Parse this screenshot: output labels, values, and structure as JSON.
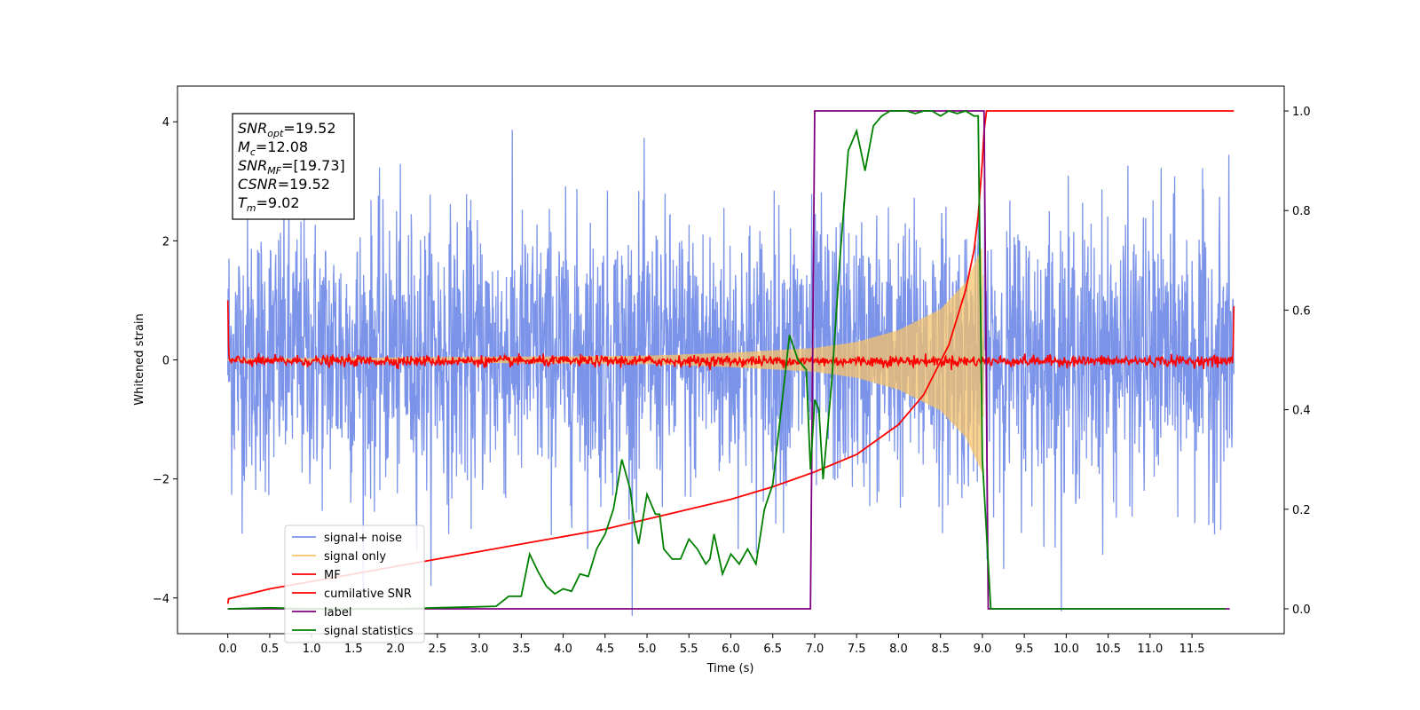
{
  "chart_data": {
    "type": "line",
    "title": "",
    "xlabel": "Time (s)",
    "ylabel": "Whitened strain",
    "xlim": [
      -0.6,
      12.6
    ],
    "ylim": [
      -4.6,
      4.6
    ],
    "y2lim": [
      -0.05,
      1.05
    ],
    "x_tick_labels": [
      "0.0",
      "0.5",
      "1.0",
      "1.5",
      "2.0",
      "2.5",
      "3.0",
      "3.5",
      "4.0",
      "4.5",
      "5.0",
      "5.5",
      "6.0",
      "6.5",
      "7.0",
      "7.5",
      "8.0",
      "8.5",
      "9.0",
      "9.5",
      "10.0",
      "10.5",
      "11.0",
      "11.5"
    ],
    "y_tick_labels": [
      "4",
      "2",
      "0",
      "−2",
      "−4"
    ],
    "y2_tick_labels": [
      "1.0",
      "0.8",
      "0.6",
      "0.4",
      "0.2",
      "0.0"
    ],
    "legend_position": "lower-left",
    "info_box": [
      {
        "sym": "SNR",
        "sub": "opt",
        "val": "=19.52"
      },
      {
        "sym": "M",
        "sub": "c",
        "val": "=12.08"
      },
      {
        "sym": "SNR",
        "sub": "MF",
        "val": "=[19.73]"
      },
      {
        "sym": "CSNR",
        "sub": "",
        "val": "=19.52"
      },
      {
        "sym": "T",
        "sub": "m",
        "val": "=9.02"
      }
    ],
    "series": [
      {
        "name": "signal+ noise",
        "color": "#7b93e8",
        "axis": "left",
        "kind": "noise",
        "x_range": [
          0,
          12
        ],
        "std": 1.15
      },
      {
        "name": "signal only",
        "color": "#f5c36b",
        "axis": "left",
        "kind": "chirp",
        "x_range": [
          0,
          9.02
        ],
        "envelope_t": [
          0,
          5,
          6,
          7,
          7.5,
          8,
          8.5,
          8.8,
          9.0,
          9.02
        ],
        "envelope_a": [
          0.02,
          0.07,
          0.12,
          0.2,
          0.3,
          0.5,
          0.85,
          1.3,
          1.9,
          0
        ]
      },
      {
        "name": "MF",
        "color": "#ff0000",
        "axis": "left",
        "kind": "mf",
        "x_range": [
          0,
          12
        ],
        "start": 1.0,
        "end": 0.9
      },
      {
        "name": "cumilative SNR",
        "color": "#ff0000",
        "axis": "right",
        "x": [
          0.0,
          0.01,
          0.5,
          1.0,
          1.5,
          2.0,
          2.5,
          3.0,
          3.5,
          4.0,
          4.5,
          5.0,
          5.5,
          6.0,
          6.5,
          7.0,
          7.5,
          8.0,
          8.3,
          8.6,
          8.8,
          8.9,
          8.95,
          9.0,
          9.02,
          9.05,
          12.0
        ],
        "y": [
          0.01,
          0.02,
          0.04,
          0.055,
          0.07,
          0.085,
          0.1,
          0.115,
          0.13,
          0.145,
          0.16,
          0.18,
          0.2,
          0.22,
          0.245,
          0.275,
          0.31,
          0.37,
          0.43,
          0.53,
          0.64,
          0.72,
          0.79,
          0.9,
          0.96,
          1.0,
          1.0
        ]
      },
      {
        "name": "label",
        "color": "#800080",
        "axis": "right",
        "x": [
          0.0,
          6.95,
          7.0,
          9.02,
          9.07,
          11.95
        ],
        "y": [
          0,
          0,
          1,
          1,
          0,
          0
        ]
      },
      {
        "name": "signal statistics",
        "color": "#008000",
        "axis": "right",
        "x": [
          0.0,
          0.5,
          1.0,
          2.0,
          2.5,
          3.0,
          3.2,
          3.35,
          3.5,
          3.6,
          3.7,
          3.8,
          3.9,
          4.0,
          4.1,
          4.2,
          4.3,
          4.4,
          4.5,
          4.6,
          4.7,
          4.8,
          4.85,
          4.9,
          5.0,
          5.1,
          5.15,
          5.2,
          5.3,
          5.4,
          5.5,
          5.6,
          5.7,
          5.75,
          5.8,
          5.9,
          6.0,
          6.1,
          6.2,
          6.3,
          6.4,
          6.5,
          6.6,
          6.7,
          6.8,
          6.9,
          6.95,
          7.0,
          7.05,
          7.1,
          7.2,
          7.3,
          7.4,
          7.5,
          7.6,
          7.7,
          7.8,
          7.9,
          8.0,
          8.1,
          8.2,
          8.3,
          8.4,
          8.5,
          8.6,
          8.7,
          8.8,
          8.9,
          8.95,
          9.0,
          9.1,
          11.9
        ],
        "y": [
          0.0,
          0.002,
          0.0,
          0.0,
          0.002,
          0.004,
          0.005,
          0.025,
          0.025,
          0.11,
          0.075,
          0.045,
          0.03,
          0.04,
          0.035,
          0.07,
          0.065,
          0.12,
          0.15,
          0.2,
          0.3,
          0.24,
          0.17,
          0.13,
          0.23,
          0.19,
          0.19,
          0.12,
          0.1,
          0.1,
          0.14,
          0.12,
          0.09,
          0.1,
          0.15,
          0.07,
          0.11,
          0.09,
          0.12,
          0.09,
          0.2,
          0.25,
          0.4,
          0.55,
          0.5,
          0.48,
          0.28,
          0.42,
          0.4,
          0.26,
          0.45,
          0.7,
          0.92,
          0.96,
          0.88,
          0.97,
          0.99,
          1.0,
          1.0,
          1.0,
          0.995,
          1.0,
          1.0,
          0.99,
          1.0,
          0.995,
          1.0,
          0.99,
          0.99,
          0.3,
          0.0,
          0.0
        ]
      }
    ]
  }
}
